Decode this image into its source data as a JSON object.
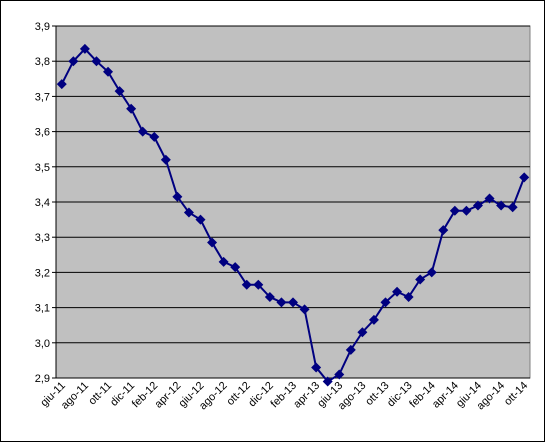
{
  "chart_data": {
    "type": "line",
    "categories": [
      "giu-11",
      null,
      "ago-11",
      null,
      "ott-11",
      null,
      "dic-11",
      null,
      "feb-12",
      null,
      "apr-12",
      null,
      "giu-12",
      null,
      "ago-12",
      null,
      "ott-12",
      null,
      "dic-12",
      null,
      "feb-13",
      null,
      "apr-13",
      null,
      "giu-13",
      null,
      "ago-13",
      null,
      "ott-13",
      null,
      "dic-13",
      null,
      "feb-14",
      null,
      "apr-14",
      null,
      "giu-14",
      null,
      "ago-14",
      null,
      "ott-14"
    ],
    "values": [
      3.735,
      3.8,
      3.835,
      3.8,
      3.77,
      3.715,
      3.665,
      3.6,
      3.585,
      3.52,
      3.415,
      3.37,
      3.35,
      3.285,
      3.23,
      3.215,
      3.165,
      3.165,
      3.13,
      3.115,
      3.115,
      3.095,
      2.93,
      2.89,
      2.91,
      2.98,
      3.03,
      3.065,
      3.115,
      3.145,
      3.13,
      3.18,
      3.2,
      3.32,
      3.375,
      3.375,
      3.39,
      3.41,
      3.39,
      3.385,
      3.47
    ],
    "color": "#000080",
    "ylim": [
      2.9,
      3.9
    ],
    "yticks": [
      {
        "value": 2.9,
        "label": "2,9"
      },
      {
        "value": 3.0,
        "label": "3,0"
      },
      {
        "value": 3.1,
        "label": "3,1"
      },
      {
        "value": 3.2,
        "label": "3,2"
      },
      {
        "value": 3.3,
        "label": "3,3"
      },
      {
        "value": 3.4,
        "label": "3,4"
      },
      {
        "value": 3.5,
        "label": "3,5"
      },
      {
        "value": 3.6,
        "label": "3,6"
      },
      {
        "value": 3.7,
        "label": "3,7"
      },
      {
        "value": 3.8,
        "label": "3,8"
      },
      {
        "value": 3.9,
        "label": "3,9"
      }
    ],
    "grid": true
  }
}
